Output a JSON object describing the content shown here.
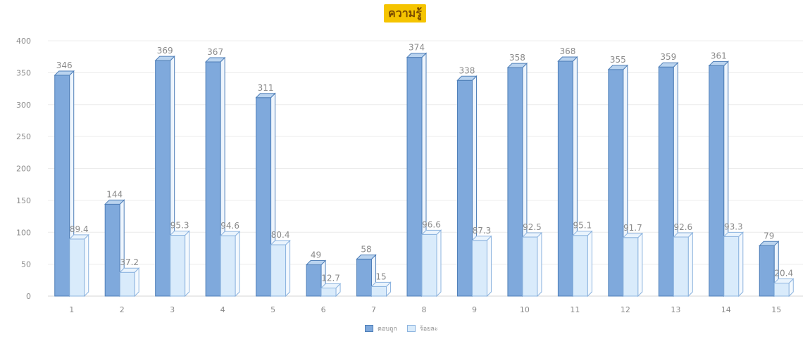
{
  "chart_data": {
    "type": "bar",
    "title": "ความรู้",
    "categories": [
      "1",
      "2",
      "3",
      "4",
      "5",
      "6",
      "7",
      "8",
      "9",
      "10",
      "11",
      "12",
      "13",
      "14",
      "15"
    ],
    "series": [
      {
        "name": "ตอบถูก",
        "values": [
          346,
          144,
          369,
          367,
          311,
          49,
          58,
          374,
          338,
          358,
          368,
          355,
          359,
          361,
          79
        ],
        "labels": [
          "346",
          "144",
          "369",
          "367",
          "311",
          "49",
          "58",
          "374",
          "338",
          "358",
          "368",
          "355",
          "359",
          "361",
          "79"
        ]
      },
      {
        "name": "ร้อยละ",
        "values": [
          89.4,
          37.2,
          95.3,
          94.6,
          80.4,
          12.7,
          15,
          96.6,
          87.3,
          92.5,
          95.1,
          91.7,
          92.6,
          93.3,
          20.4
        ],
        "labels": [
          "89.4",
          "37.2",
          "95.3",
          "94.6",
          "80.4",
          "12.7",
          "15",
          "96.6",
          "87.3",
          "92.5",
          "95.1",
          "91.7",
          "92.6",
          "93.3",
          "20.4"
        ]
      }
    ],
    "ylim": [
      0,
      400
    ],
    "yticks": [
      "0",
      "50",
      "100",
      "150",
      "200",
      "250",
      "300",
      "350",
      "400"
    ],
    "grid": true,
    "legend_position": "bottom",
    "colors": {
      "series1_face": "#7fa9dc",
      "series1_edge": "#4f7fb8",
      "series2_face": "#d9ebfb",
      "series2_edge": "#8db4df"
    }
  }
}
